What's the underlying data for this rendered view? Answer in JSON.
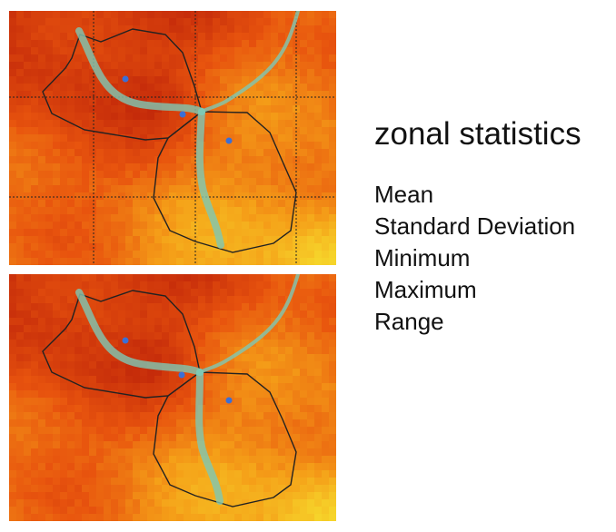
{
  "title": "zonal statistics",
  "statistics": [
    "Mean",
    "Standard Deviation",
    "Minimum",
    "Maximum",
    "Range"
  ],
  "colors": {
    "raster_dark": "#c42a0a",
    "raster_mid": "#e8540e",
    "raster_light": "#f5a018",
    "raster_yellow": "#f6d42a",
    "zone_outline": "#222222",
    "stream": "#7ec8b4",
    "point": "#3b6fd6",
    "grid_line": "#222222"
  },
  "panels": [
    {
      "id": "top",
      "grid": true,
      "stream_nodes": [
        "confluence"
      ]
    },
    {
      "id": "bottom",
      "grid": false,
      "stream_nodes": [
        "confluence"
      ]
    }
  ]
}
